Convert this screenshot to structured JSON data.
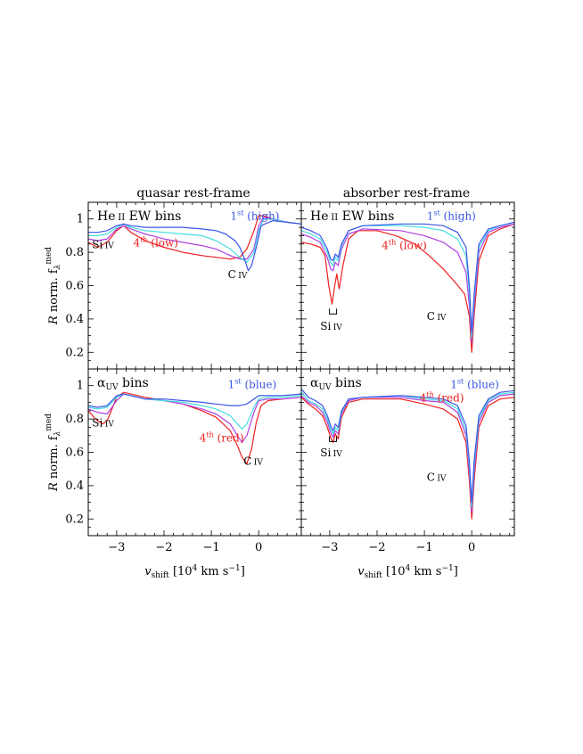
{
  "figure": {
    "col_titles": [
      "quasar rest-frame",
      "absorber rest-frame"
    ],
    "xlabel": {
      "v": "v",
      "sub": "shift",
      "rest": " [10",
      "sup": "4",
      "unit": " km s",
      "usup": "−1",
      "close": "]"
    },
    "ylabel": {
      "R": "R",
      "mid": " norm. f",
      "sub": "λ",
      "sup": "med"
    },
    "colors": {
      "first": "#3b55e6",
      "second": "#44dde0",
      "third": "#b040e0",
      "fourth": "#ee2020",
      "text": "#000000"
    },
    "xticks": [
      "−3",
      "−2",
      "−1",
      "0"
    ],
    "yticks": [
      "1",
      "0.8",
      "0.6",
      "0.4",
      "0.2"
    ]
  },
  "panels": [
    {
      "id": "tl",
      "row": 0,
      "col": 0,
      "title_main": "He",
      "title_small": "II",
      "title_rest": " EW bins",
      "annotations": [
        {
          "kind": "bin",
          "ord": "1",
          "sup": "st",
          "paren": "(high)",
          "color": "first",
          "x": -0.6,
          "y": 0.995
        },
        {
          "kind": "bin",
          "ord": "4",
          "sup": "th",
          "paren": "(low)",
          "color": "fourth",
          "x": -2.65,
          "y": 0.835
        },
        {
          "kind": "ion",
          "main": "Si",
          "small": "IV",
          "x": -3.52,
          "y": 0.825
        },
        {
          "kind": "ion",
          "main": "C",
          "small": "IV",
          "x": -0.65,
          "y": 0.645
        }
      ]
    },
    {
      "id": "tr",
      "row": 0,
      "col": 1,
      "title_main": "He",
      "title_small": "II",
      "title_rest": " EW bins",
      "annotations": [
        {
          "kind": "bin",
          "ord": "1",
          "sup": "st",
          "paren": "(high)",
          "color": "first",
          "x": -0.95,
          "y": 0.995
        },
        {
          "kind": "bin",
          "ord": "4",
          "sup": "th",
          "paren": "(low)",
          "color": "fourth",
          "x": -1.9,
          "y": 0.82
        },
        {
          "kind": "ion",
          "main": "Si",
          "small": "IV",
          "x": -3.2,
          "y": 0.335
        },
        {
          "kind": "ion",
          "main": "C",
          "small": "IV",
          "x": -0.95,
          "y": 0.395
        },
        {
          "kind": "bracket",
          "x": -2.93,
          "y": 0.43
        }
      ]
    },
    {
      "id": "bl",
      "row": 1,
      "col": 0,
      "title_main": "α",
      "title_small": "UV",
      "title_rest": " bins",
      "annotations": [
        {
          "kind": "bin",
          "ord": "1",
          "sup": "st",
          "paren": "(blue)",
          "color": "first",
          "x": -0.65,
          "y": 0.985
        },
        {
          "kind": "bin",
          "ord": "4",
          "sup": "th",
          "paren": "(red)",
          "color": "fourth",
          "x": -1.25,
          "y": 0.665
        },
        {
          "kind": "ion",
          "main": "Si",
          "small": "IV",
          "x": -3.52,
          "y": 0.755
        },
        {
          "kind": "ion",
          "main": "C",
          "small": "IV",
          "x": -0.32,
          "y": 0.525
        }
      ]
    },
    {
      "id": "br",
      "row": 1,
      "col": 1,
      "title_main": "α",
      "title_small": "UV",
      "title_rest": " bins",
      "annotations": [
        {
          "kind": "bin",
          "ord": "1",
          "sup": "st",
          "paren": "(blue)",
          "color": "first",
          "x": -0.45,
          "y": 0.985
        },
        {
          "kind": "bin",
          "ord": "4",
          "sup": "th",
          "paren": "(red)",
          "color": "fourth",
          "x": -1.1,
          "y": 0.905
        },
        {
          "kind": "ion",
          "main": "Si",
          "small": "IV",
          "x": -3.2,
          "y": 0.575
        },
        {
          "kind": "ion",
          "main": "C",
          "small": "IV",
          "x": -0.95,
          "y": 0.43
        },
        {
          "kind": "bracket",
          "x": -2.93,
          "y": 0.665
        }
      ]
    }
  ],
  "chart_data": [
    {
      "type": "line",
      "panel": "tl",
      "xlabel": "v_shift [10^4 km s^-1]",
      "ylabel": "R norm. f_lambda^med",
      "xlim": [
        -3.6,
        0.9
      ],
      "ylim": [
        0.1,
        1.1
      ],
      "legend": "inline labels",
      "series": [
        {
          "color": "#3b55e6",
          "x": [
            -3.6,
            -3.4,
            -3.2,
            -3.0,
            -2.85,
            -2.7,
            -2.4,
            -2.0,
            -1.6,
            -1.2,
            -0.9,
            -0.7,
            -0.5,
            -0.4,
            -0.3,
            -0.22,
            -0.15,
            -0.05,
            0.05,
            0.3,
            0.6,
            0.9
          ],
          "y": [
            0.92,
            0.92,
            0.93,
            0.96,
            0.97,
            0.96,
            0.95,
            0.95,
            0.95,
            0.94,
            0.93,
            0.91,
            0.87,
            0.83,
            0.76,
            0.69,
            0.72,
            0.83,
            0.96,
            0.99,
            0.98,
            0.97
          ]
        },
        {
          "color": "#44dde0",
          "x": [
            -3.6,
            -3.4,
            -3.2,
            -3.0,
            -2.85,
            -2.7,
            -2.4,
            -2.0,
            -1.6,
            -1.2,
            -0.9,
            -0.6,
            -0.4,
            -0.25,
            -0.1,
            0.0,
            0.1,
            0.3,
            0.6,
            0.9
          ],
          "y": [
            0.9,
            0.9,
            0.91,
            0.95,
            0.97,
            0.95,
            0.93,
            0.92,
            0.91,
            0.9,
            0.87,
            0.82,
            0.77,
            0.74,
            0.8,
            0.93,
            1.0,
            1.0,
            0.98,
            0.97
          ]
        },
        {
          "color": "#b040e0",
          "x": [
            -3.6,
            -3.4,
            -3.2,
            -3.0,
            -2.85,
            -2.7,
            -2.4,
            -2.0,
            -1.6,
            -1.2,
            -0.9,
            -0.6,
            -0.4,
            -0.25,
            -0.1,
            0.0,
            0.1,
            0.3,
            0.6,
            0.9
          ],
          "y": [
            0.88,
            0.87,
            0.88,
            0.94,
            0.96,
            0.94,
            0.91,
            0.88,
            0.86,
            0.84,
            0.82,
            0.78,
            0.76,
            0.76,
            0.82,
            0.96,
            1.01,
            1.0,
            0.98,
            0.97
          ]
        },
        {
          "color": "#ee2020",
          "x": [
            -3.6,
            -3.4,
            -3.2,
            -3.0,
            -2.85,
            -2.7,
            -2.4,
            -2.0,
            -1.6,
            -1.2,
            -0.9,
            -0.6,
            -0.4,
            -0.25,
            -0.1,
            0.0,
            0.1,
            0.3,
            0.6,
            0.9
          ],
          "y": [
            0.86,
            0.83,
            0.86,
            0.93,
            0.96,
            0.92,
            0.87,
            0.83,
            0.8,
            0.78,
            0.77,
            0.76,
            0.77,
            0.82,
            0.93,
            1.02,
            1.02,
            1.0,
            0.98,
            0.97
          ]
        }
      ]
    },
    {
      "type": "line",
      "panel": "tr",
      "xlabel": "v_shift [10^4 km s^-1]",
      "ylabel": "R norm. f_lambda^med",
      "xlim": [
        -3.6,
        0.9
      ],
      "ylim": [
        0.1,
        1.1
      ],
      "legend": "inline labels",
      "series": [
        {
          "color": "#3b55e6",
          "x": [
            -3.6,
            -3.4,
            -3.2,
            -3.05,
            -2.98,
            -2.93,
            -2.88,
            -2.82,
            -2.75,
            -2.6,
            -2.3,
            -1.5,
            -1.0,
            -0.6,
            -0.3,
            -0.12,
            -0.05,
            0.0,
            0.05,
            0.15,
            0.35,
            0.6,
            0.9
          ],
          "y": [
            0.95,
            0.93,
            0.9,
            0.82,
            0.76,
            0.75,
            0.79,
            0.77,
            0.85,
            0.93,
            0.96,
            0.97,
            0.97,
            0.96,
            0.92,
            0.83,
            0.6,
            0.32,
            0.55,
            0.85,
            0.94,
            0.96,
            0.98
          ]
        },
        {
          "color": "#44dde0",
          "x": [
            -3.6,
            -3.4,
            -3.2,
            -3.05,
            -2.98,
            -2.93,
            -2.88,
            -2.82,
            -2.75,
            -2.6,
            -2.3,
            -1.5,
            -1.0,
            -0.6,
            -0.3,
            -0.12,
            -0.05,
            0.0,
            0.05,
            0.15,
            0.35,
            0.6,
            0.9
          ],
          "y": [
            0.93,
            0.91,
            0.88,
            0.8,
            0.74,
            0.72,
            0.77,
            0.75,
            0.84,
            0.93,
            0.96,
            0.96,
            0.95,
            0.93,
            0.88,
            0.78,
            0.55,
            0.29,
            0.52,
            0.83,
            0.93,
            0.96,
            0.98
          ]
        },
        {
          "color": "#b040e0",
          "x": [
            -3.6,
            -3.4,
            -3.2,
            -3.05,
            -2.98,
            -2.93,
            -2.88,
            -2.82,
            -2.75,
            -2.6,
            -2.3,
            -1.5,
            -1.0,
            -0.6,
            -0.3,
            -0.12,
            -0.05,
            0.0,
            0.05,
            0.15,
            0.35,
            0.6,
            0.9
          ],
          "y": [
            0.91,
            0.89,
            0.86,
            0.77,
            0.7,
            0.69,
            0.74,
            0.72,
            0.82,
            0.91,
            0.94,
            0.93,
            0.9,
            0.86,
            0.8,
            0.68,
            0.48,
            0.26,
            0.48,
            0.8,
            0.92,
            0.95,
            0.97
          ]
        },
        {
          "color": "#ee2020",
          "x": [
            -3.6,
            -3.4,
            -3.2,
            -3.1,
            -3.02,
            -2.95,
            -2.9,
            -2.85,
            -2.8,
            -2.72,
            -2.6,
            -2.4,
            -2.0,
            -1.6,
            -1.2,
            -0.9,
            -0.6,
            -0.35,
            -0.15,
            -0.05,
            0.0,
            0.05,
            0.15,
            0.35,
            0.6,
            0.9
          ],
          "y": [
            0.86,
            0.85,
            0.83,
            0.78,
            0.6,
            0.49,
            0.59,
            0.67,
            0.58,
            0.72,
            0.88,
            0.93,
            0.93,
            0.9,
            0.85,
            0.78,
            0.7,
            0.62,
            0.55,
            0.42,
            0.2,
            0.42,
            0.75,
            0.9,
            0.94,
            0.97
          ]
        }
      ]
    },
    {
      "type": "line",
      "panel": "bl",
      "xlabel": "v_shift [10^4 km s^-1]",
      "ylabel": "R norm. f_lambda^med",
      "xlim": [
        -3.6,
        0.9
      ],
      "ylim": [
        0.1,
        1.1
      ],
      "legend": "inline labels",
      "series": [
        {
          "color": "#3b55e6",
          "x": [
            -3.6,
            -3.4,
            -3.2,
            -3.0,
            -2.85,
            -2.7,
            -2.4,
            -2.0,
            -1.6,
            -1.2,
            -0.9,
            -0.6,
            -0.4,
            -0.25,
            -0.1,
            0.0,
            0.2,
            0.5,
            0.9
          ],
          "y": [
            0.88,
            0.87,
            0.88,
            0.94,
            0.95,
            0.94,
            0.92,
            0.92,
            0.91,
            0.9,
            0.89,
            0.88,
            0.88,
            0.89,
            0.92,
            0.94,
            0.94,
            0.94,
            0.95
          ]
        },
        {
          "color": "#44dde0",
          "x": [
            -3.6,
            -3.4,
            -3.2,
            -3.0,
            -2.85,
            -2.7,
            -2.4,
            -2.0,
            -1.6,
            -1.2,
            -0.9,
            -0.6,
            -0.45,
            -0.35,
            -0.25,
            -0.1,
            0.0,
            0.2,
            0.5,
            0.9
          ],
          "y": [
            0.87,
            0.86,
            0.87,
            0.93,
            0.95,
            0.94,
            0.92,
            0.91,
            0.9,
            0.88,
            0.86,
            0.82,
            0.77,
            0.74,
            0.77,
            0.87,
            0.92,
            0.93,
            0.93,
            0.94
          ]
        },
        {
          "color": "#b040e0",
          "x": [
            -3.6,
            -3.4,
            -3.2,
            -3.0,
            -2.85,
            -2.7,
            -2.4,
            -2.0,
            -1.6,
            -1.2,
            -0.9,
            -0.6,
            -0.45,
            -0.35,
            -0.25,
            -0.1,
            0.0,
            0.2,
            0.5,
            0.9
          ],
          "y": [
            0.86,
            0.84,
            0.83,
            0.91,
            0.95,
            0.94,
            0.92,
            0.91,
            0.89,
            0.86,
            0.83,
            0.77,
            0.7,
            0.66,
            0.7,
            0.84,
            0.91,
            0.92,
            0.92,
            0.93
          ]
        },
        {
          "color": "#ee2020",
          "x": [
            -3.6,
            -3.45,
            -3.3,
            -3.2,
            -3.1,
            -3.0,
            -2.85,
            -2.7,
            -2.4,
            -2.0,
            -1.6,
            -1.2,
            -0.9,
            -0.6,
            -0.45,
            -0.35,
            -0.25,
            -0.15,
            -0.05,
            0.05,
            0.2,
            0.5,
            0.9
          ],
          "y": [
            0.85,
            0.8,
            0.77,
            0.79,
            0.86,
            0.93,
            0.96,
            0.95,
            0.93,
            0.91,
            0.89,
            0.85,
            0.81,
            0.73,
            0.64,
            0.57,
            0.53,
            0.62,
            0.78,
            0.88,
            0.91,
            0.92,
            0.93
          ]
        }
      ]
    },
    {
      "type": "line",
      "panel": "br",
      "xlabel": "v_shift [10^4 km s^-1]",
      "ylabel": "R norm. f_lambda^med",
      "xlim": [
        -3.6,
        0.9
      ],
      "ylim": [
        0.1,
        1.1
      ],
      "legend": "inline labels",
      "series": [
        {
          "color": "#3b55e6",
          "x": [
            -3.6,
            -3.45,
            -3.3,
            -3.15,
            -3.05,
            -2.98,
            -2.93,
            -2.88,
            -2.82,
            -2.75,
            -2.6,
            -2.3,
            -1.5,
            -1.0,
            -0.6,
            -0.3,
            -0.12,
            -0.05,
            0.0,
            0.05,
            0.15,
            0.35,
            0.6,
            0.9
          ],
          "y": [
            0.98,
            0.93,
            0.91,
            0.88,
            0.82,
            0.76,
            0.73,
            0.77,
            0.75,
            0.85,
            0.92,
            0.93,
            0.94,
            0.93,
            0.92,
            0.88,
            0.76,
            0.55,
            0.3,
            0.55,
            0.82,
            0.92,
            0.96,
            0.97
          ]
        },
        {
          "color": "#44dde0",
          "x": [
            -3.6,
            -3.45,
            -3.3,
            -3.15,
            -3.05,
            -2.98,
            -2.93,
            -2.88,
            -2.82,
            -2.75,
            -2.6,
            -2.3,
            -1.5,
            -1.0,
            -0.6,
            -0.3,
            -0.12,
            -0.05,
            0.0,
            0.05,
            0.15,
            0.35,
            0.6,
            0.9
          ],
          "y": [
            0.96,
            0.91,
            0.89,
            0.86,
            0.8,
            0.74,
            0.71,
            0.75,
            0.73,
            0.84,
            0.92,
            0.93,
            0.94,
            0.92,
            0.91,
            0.86,
            0.73,
            0.52,
            0.27,
            0.52,
            0.8,
            0.91,
            0.95,
            0.96
          ]
        },
        {
          "color": "#b040e0",
          "x": [
            -3.6,
            -3.45,
            -3.3,
            -3.15,
            -3.05,
            -2.98,
            -2.93,
            -2.88,
            -2.82,
            -2.75,
            -2.6,
            -2.3,
            -1.5,
            -1.0,
            -0.6,
            -0.3,
            -0.12,
            -0.05,
            0.0,
            0.05,
            0.15,
            0.35,
            0.6,
            0.9
          ],
          "y": [
            0.94,
            0.9,
            0.88,
            0.84,
            0.78,
            0.72,
            0.69,
            0.73,
            0.71,
            0.83,
            0.91,
            0.93,
            0.93,
            0.91,
            0.9,
            0.84,
            0.7,
            0.48,
            0.24,
            0.48,
            0.78,
            0.9,
            0.94,
            0.95
          ]
        },
        {
          "color": "#ee2020",
          "x": [
            -3.6,
            -3.45,
            -3.3,
            -3.15,
            -3.05,
            -2.98,
            -2.93,
            -2.88,
            -2.82,
            -2.75,
            -2.6,
            -2.3,
            -1.5,
            -1.0,
            -0.6,
            -0.3,
            -0.12,
            -0.05,
            0.0,
            0.05,
            0.15,
            0.35,
            0.6,
            0.9
          ],
          "y": [
            0.93,
            0.89,
            0.86,
            0.82,
            0.75,
            0.69,
            0.66,
            0.71,
            0.68,
            0.81,
            0.9,
            0.92,
            0.92,
            0.89,
            0.86,
            0.8,
            0.66,
            0.43,
            0.2,
            0.43,
            0.75,
            0.88,
            0.92,
            0.93
          ]
        }
      ]
    }
  ]
}
